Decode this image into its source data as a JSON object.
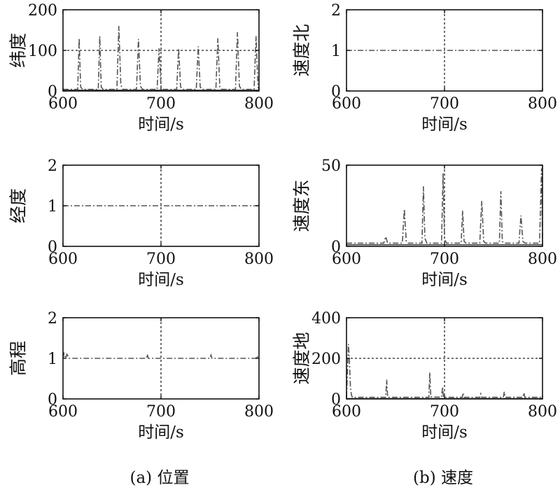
{
  "captions": {
    "left": "(a) 位置",
    "right": "(b) 速度"
  },
  "chart_data": [
    {
      "type": "line",
      "panel": "(a) 位置",
      "ylabel": "纬度",
      "xlabel": "时间/s",
      "xlim": [
        600,
        800
      ],
      "ylim": [
        0,
        200
      ],
      "xticks": [
        600,
        700,
        800
      ],
      "yticks": [
        0,
        100,
        200
      ],
      "grid": {
        "x": [
          700
        ],
        "y": [
          100
        ]
      },
      "series": [
        {
          "style": "solid",
          "x": [
            600,
            800
          ],
          "y": [
            2,
            2
          ]
        },
        {
          "style": "dashdot",
          "x": [
            600,
            615,
            616.5,
            618,
            620,
            636,
            637.5,
            639,
            641,
            655,
            657,
            659,
            661,
            675,
            677,
            679,
            681,
            696,
            698,
            700,
            702,
            716,
            718,
            720,
            722,
            736,
            738,
            740,
            742,
            756,
            758,
            760,
            762,
            776,
            778,
            780,
            782,
            795,
            797,
            799,
            800
          ],
          "y": [
            4,
            4,
            130,
            10,
            4,
            4,
            135,
            10,
            4,
            4,
            160,
            15,
            4,
            4,
            128,
            12,
            4,
            4,
            105,
            10,
            4,
            4,
            105,
            10,
            4,
            4,
            110,
            10,
            4,
            4,
            130,
            10,
            4,
            4,
            145,
            12,
            4,
            4,
            135,
            10,
            4
          ]
        }
      ]
    },
    {
      "type": "line",
      "panel": "(b) 速度",
      "ylabel": "速度北",
      "xlabel": "时间/s",
      "xlim": [
        600,
        800
      ],
      "ylim": [
        0,
        2
      ],
      "xticks": [
        600,
        700,
        800
      ],
      "yticks": [
        0,
        1,
        2
      ],
      "grid": {
        "x": [
          700
        ],
        "y": []
      },
      "series": [
        {
          "style": "dashdot",
          "x": [
            600,
            800
          ],
          "y": [
            1,
            1
          ]
        }
      ]
    },
    {
      "type": "line",
      "panel": "(a) 位置",
      "ylabel": "经度",
      "xlabel": "时间/s",
      "xlim": [
        600,
        800
      ],
      "ylim": [
        0,
        2
      ],
      "xticks": [
        600,
        700,
        800
      ],
      "yticks": [
        0,
        1,
        2
      ],
      "grid": {
        "x": [
          700
        ],
        "y": []
      },
      "series": [
        {
          "style": "dashdot",
          "x": [
            600,
            800
          ],
          "y": [
            1,
            1
          ]
        }
      ]
    },
    {
      "type": "line",
      "panel": "(b) 速度",
      "ylabel": "速度东",
      "xlabel": "时间/s",
      "xlim": [
        600,
        800
      ],
      "ylim": [
        0,
        50
      ],
      "xticks": [
        600,
        700,
        800
      ],
      "yticks": [
        0,
        50
      ],
      "grid": {
        "x": [
          700
        ],
        "y": []
      },
      "series": [
        {
          "style": "solid",
          "x": [
            600,
            800
          ],
          "y": [
            1,
            1
          ]
        },
        {
          "style": "dashdot",
          "x": [
            600,
            638,
            640,
            642,
            657,
            659,
            661,
            663,
            677,
            678.5,
            680,
            682,
            697,
            698.5,
            700,
            702,
            717,
            718.5,
            720,
            722,
            736,
            738,
            740,
            742,
            756,
            757.5,
            759,
            761,
            776,
            778,
            780,
            782,
            797,
            799,
            800
          ],
          "y": [
            2,
            2,
            6,
            2,
            2,
            23,
            3,
            2,
            2,
            37,
            5,
            2,
            2,
            45,
            5,
            2,
            2,
            22,
            3,
            2,
            2,
            28,
            3,
            2,
            2,
            34,
            3,
            2,
            2,
            19,
            3,
            2,
            2,
            48,
            2
          ]
        }
      ]
    },
    {
      "type": "line",
      "panel": "(a) 位置",
      "ylabel": "高程",
      "xlabel": "时间/s",
      "xlim": [
        600,
        800
      ],
      "ylim": [
        0,
        2
      ],
      "xticks": [
        600,
        700,
        800
      ],
      "yticks": [
        0,
        1,
        2
      ],
      "grid": {
        "x": [
          700
        ],
        "y": []
      },
      "series": [
        {
          "style": "dashdot",
          "x": [
            600,
            601,
            602,
            603,
            604,
            605,
            606,
            685,
            686,
            687,
            688,
            750,
            751,
            752,
            753,
            797,
            798,
            799,
            800
          ],
          "y": [
            1,
            1.12,
            1.05,
            1.0,
            1.1,
            1.06,
            1.0,
            1.0,
            1.1,
            1.0,
            1.0,
            1.0,
            1.08,
            1.0,
            1.0,
            1.0,
            1.06,
            1.0,
            1.0
          ]
        }
      ]
    },
    {
      "type": "line",
      "panel": "(b) 速度",
      "ylabel": "速度地",
      "xlabel": "时间/s",
      "xlim": [
        600,
        800
      ],
      "ylim": [
        0,
        400
      ],
      "xticks": [
        600,
        700,
        800
      ],
      "yticks": [
        0,
        200,
        400
      ],
      "grid": {
        "x": [
          700
        ],
        "y": [
          200
        ]
      },
      "series": [
        {
          "style": "solid",
          "x": [
            600,
            800
          ],
          "y": [
            2,
            2
          ]
        },
        {
          "style": "dashdot",
          "x": [
            600,
            601,
            602,
            603,
            604,
            605,
            606,
            607,
            640,
            641,
            642,
            684,
            685,
            686,
            697,
            698,
            699,
            718,
            719,
            720,
            736,
            737,
            738,
            760,
            761,
            762,
            780,
            781,
            782,
            800
          ],
          "y": [
            10,
            140,
            270,
            180,
            60,
            20,
            8,
            8,
            8,
            95,
            8,
            8,
            130,
            10,
            8,
            60,
            8,
            8,
            30,
            8,
            8,
            25,
            8,
            8,
            35,
            8,
            8,
            30,
            8,
            8
          ]
        }
      ]
    }
  ]
}
